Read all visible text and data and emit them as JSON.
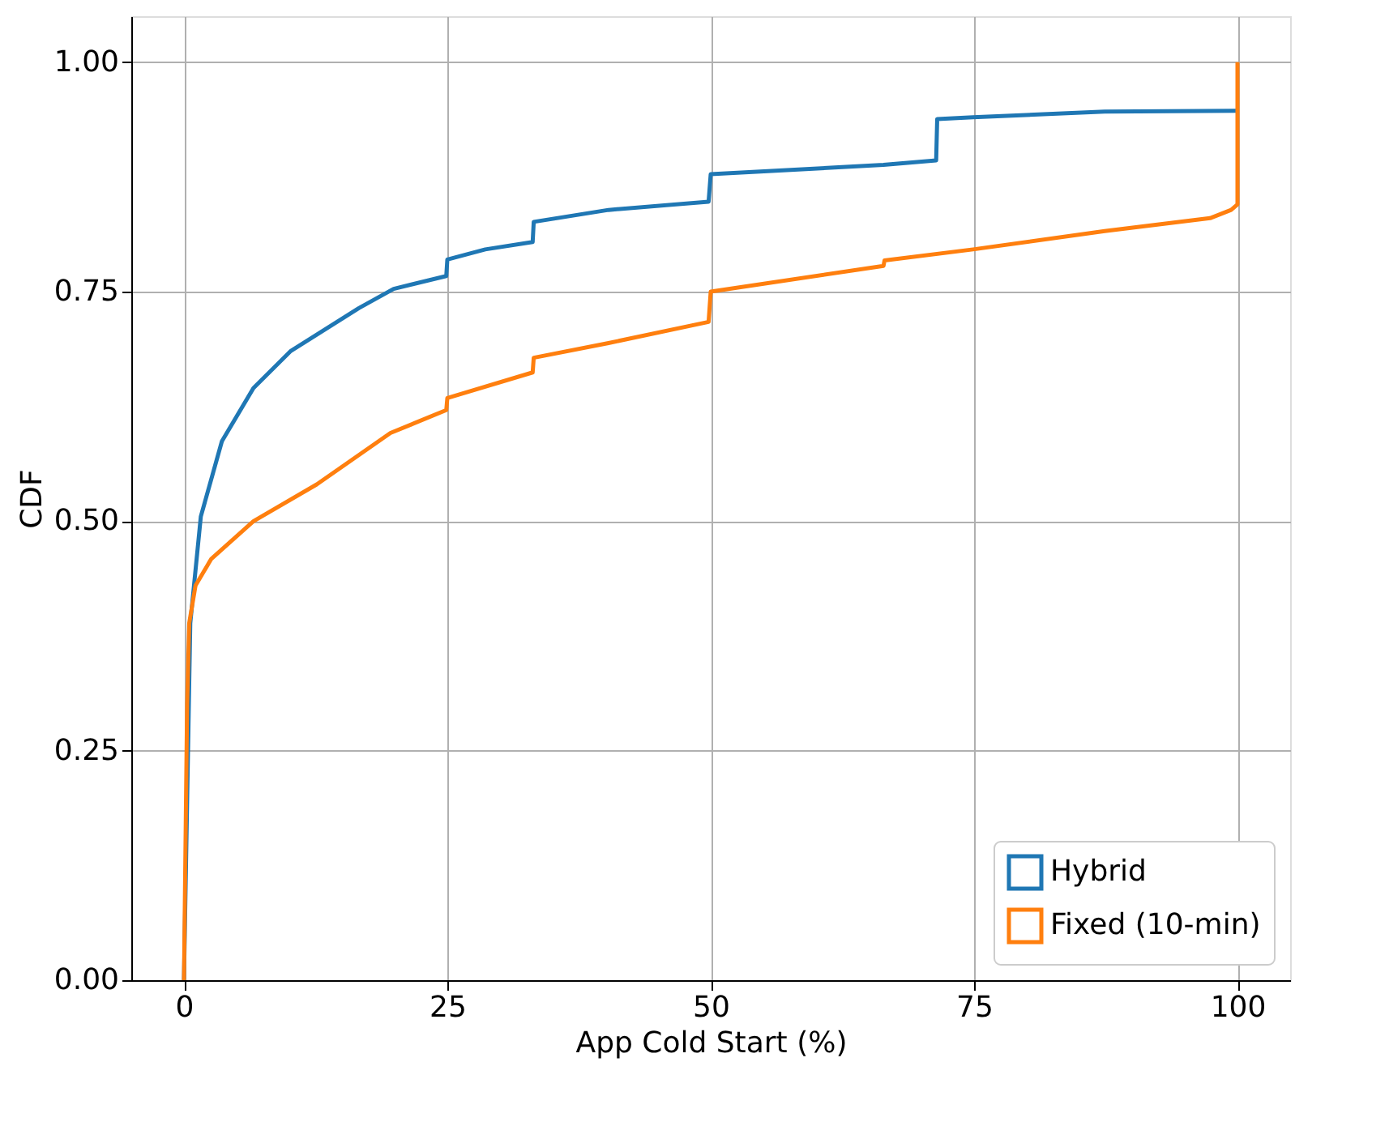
{
  "chart_data": {
    "type": "line",
    "xlabel": "App Cold Start (%)",
    "ylabel": "CDF",
    "xlim": [
      -5,
      105
    ],
    "xticks": [
      0,
      25,
      50,
      75,
      100
    ],
    "ylim": [
      0,
      1.05
    ],
    "yticks": [
      {
        "value": 0,
        "label": "0.00"
      },
      {
        "value": 0.25,
        "label": "0.25"
      },
      {
        "value": 0.5,
        "label": "0.50"
      },
      {
        "value": 0.75,
        "label": "0.75"
      },
      {
        "value": 1,
        "label": "1.00"
      }
    ],
    "grid": true,
    "legend": "bottom right",
    "line_style": "solid",
    "marker": "none",
    "series": [
      {
        "name": "Hybrid",
        "color": "#1f77b4",
        "x": [
          0,
          0.6,
          1.6,
          3.6,
          6.6,
          10.1,
          16.6,
          19.9,
          24.9,
          25,
          28.6,
          33.1,
          33.2,
          40.3,
          49.8,
          50,
          66.4,
          71.4,
          71.5,
          74.9,
          87.4,
          99.9
        ],
        "values": [
          0,
          0.389,
          0.505,
          0.587,
          0.645,
          0.685,
          0.732,
          0.753,
          0.767,
          0.785,
          0.796,
          0.804,
          0.826,
          0.839,
          0.848,
          0.878,
          0.888,
          0.893,
          0.938,
          0.94,
          0.946,
          0.947
        ]
      },
      {
        "name": "Fixed (10-min)",
        "color": "#ff7f0e",
        "x": [
          0,
          0.3,
          0.5,
          1.1,
          2.6,
          6.6,
          12.6,
          19.6,
          24.9,
          25,
          33.1,
          33.2,
          40.3,
          49.8,
          50,
          66.4,
          66.5,
          74.9,
          87.4,
          97.4,
          99.4,
          100,
          100
        ],
        "values": [
          0,
          0.3,
          0.389,
          0.43,
          0.459,
          0.5,
          0.54,
          0.596,
          0.621,
          0.634,
          0.662,
          0.678,
          0.694,
          0.717,
          0.75,
          0.778,
          0.784,
          0.796,
          0.816,
          0.83,
          0.839,
          0.845,
          1.0
        ]
      }
    ]
  }
}
